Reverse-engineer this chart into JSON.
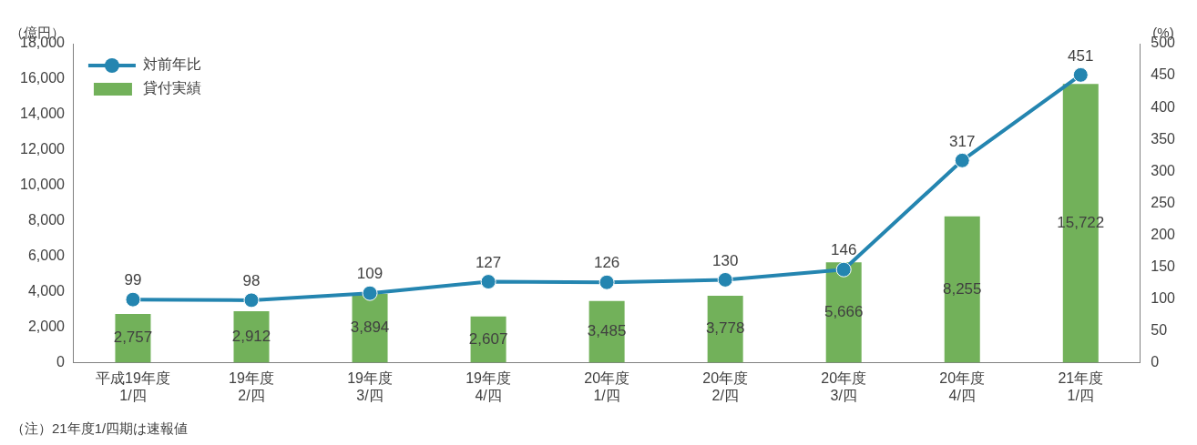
{
  "chart_data": {
    "type": "bar",
    "ylabel": "（億円）",
    "y2label": "(%)",
    "categories": [
      "平成19年度\n1/四",
      "19年度\n2/四",
      "19年度\n3/四",
      "19年度\n4/四",
      "20年度\n1/四",
      "20年度\n2/四",
      "20年度\n3/四",
      "20年度\n4/四",
      "21年度\n1/四"
    ],
    "series": [
      {
        "name": "対前年比",
        "type": "line",
        "axis": "y2",
        "color": "#2485b0",
        "marker": "circle",
        "values": [
          99,
          98,
          109,
          127,
          126,
          130,
          146,
          317,
          451
        ],
        "value_labels": [
          "99",
          "98",
          "109",
          "127",
          "126",
          "130",
          "146",
          "317",
          "451"
        ]
      },
      {
        "name": "貸付実績",
        "color": "#72b15a",
        "values": [
          2757,
          2912,
          3894,
          2607,
          3485,
          3778,
          5666,
          8255,
          15722
        ],
        "value_labels": [
          "2,757",
          "2,912",
          "3,894",
          "2,607",
          "3,485",
          "3,778",
          "5,666",
          "8,255",
          "15,722"
        ]
      }
    ],
    "ylim": [
      0,
      18000
    ],
    "yticks": [
      0,
      {
        "value": 2000,
        "label": "2,000"
      },
      {
        "value": 4000,
        "label": "4,000"
      },
      {
        "value": 6000,
        "label": "6,000"
      },
      {
        "value": 8000,
        "label": "8,000"
      },
      {
        "value": 10000,
        "label": "10,000"
      },
      {
        "value": 12000,
        "label": "12,000"
      },
      {
        "value": 14000,
        "label": "14,000"
      },
      {
        "value": 16000,
        "label": "16,000"
      },
      {
        "value": 18000,
        "label": "18,000"
      }
    ],
    "y2lim": [
      0,
      500
    ],
    "y2ticks": [
      0,
      50,
      100,
      150,
      200,
      250,
      300,
      350,
      400,
      450,
      500
    ],
    "grid": false,
    "legend": "top left",
    "annotations": [
      "（注）21年度1/四期は速報値"
    ]
  }
}
